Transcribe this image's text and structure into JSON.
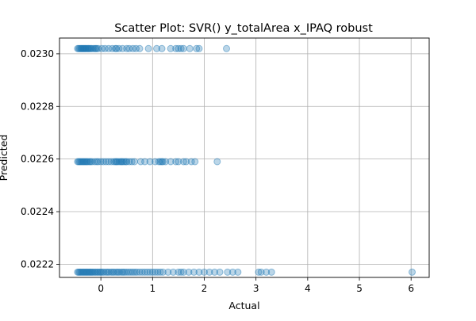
{
  "chart_data": {
    "type": "scatter",
    "title": "Scatter Plot: SVR() y_totalArea x_IPAQ robust",
    "xlabel": "Actual",
    "ylabel": "Predicted",
    "xlim": [
      -0.8,
      6.35
    ],
    "ylim": [
      0.02215,
      0.02306
    ],
    "xticks": [
      0,
      1,
      2,
      3,
      4,
      5,
      6
    ],
    "yticks": [
      0.0222,
      0.0224,
      0.0226,
      0.0228,
      0.023
    ],
    "xtick_labels": [
      "0",
      "1",
      "2",
      "3",
      "4",
      "5",
      "6"
    ],
    "ytick_labels": [
      "0.0222",
      "0.0224",
      "0.0226",
      "0.0228",
      "0.0230"
    ],
    "grid": true,
    "marker_color": "#1f77b4",
    "marker_alpha": 0.3,
    "series": [
      {
        "y": 0.02302,
        "x": [
          -0.45,
          -0.43,
          -0.41,
          -0.39,
          -0.38,
          -0.36,
          -0.35,
          -0.33,
          -0.32,
          -0.3,
          -0.29,
          -0.27,
          -0.25,
          -0.24,
          -0.22,
          -0.2,
          -0.18,
          -0.15,
          -0.12,
          -0.1,
          -0.08,
          -0.05,
          0.02,
          0.08,
          0.15,
          0.22,
          0.28,
          0.3,
          0.35,
          0.42,
          0.5,
          0.55,
          0.62,
          0.68,
          0.75,
          0.92,
          1.08,
          1.18,
          1.35,
          1.45,
          1.5,
          1.55,
          1.6,
          1.72,
          1.85,
          1.9,
          2.43
        ]
      },
      {
        "y": 0.02259,
        "x": [
          -0.45,
          -0.43,
          -0.41,
          -0.39,
          -0.37,
          -0.35,
          -0.33,
          -0.31,
          -0.29,
          -0.27,
          -0.25,
          -0.22,
          -0.2,
          -0.17,
          -0.12,
          -0.08,
          -0.05,
          0.0,
          0.05,
          0.1,
          0.15,
          0.2,
          0.25,
          0.28,
          0.3,
          0.32,
          0.35,
          0.38,
          0.4,
          0.42,
          0.45,
          0.48,
          0.5,
          0.55,
          0.6,
          0.65,
          0.77,
          0.85,
          0.95,
          1.05,
          1.12,
          1.15,
          1.18,
          1.2,
          1.25,
          1.35,
          1.45,
          1.5,
          1.6,
          1.65,
          1.75,
          1.82,
          2.25
        ]
      },
      {
        "y": 0.02217,
        "x": [
          -0.45,
          -0.43,
          -0.41,
          -0.39,
          -0.37,
          -0.35,
          -0.33,
          -0.31,
          -0.29,
          -0.27,
          -0.25,
          -0.23,
          -0.21,
          -0.19,
          -0.17,
          -0.15,
          -0.12,
          -0.1,
          -0.07,
          -0.05,
          -0.02,
          0.0,
          0.03,
          0.06,
          0.1,
          0.13,
          0.16,
          0.2,
          0.23,
          0.26,
          0.3,
          0.33,
          0.36,
          0.4,
          0.43,
          0.46,
          0.5,
          0.54,
          0.58,
          0.62,
          0.66,
          0.7,
          0.75,
          0.8,
          0.85,
          0.9,
          0.95,
          1.0,
          1.05,
          1.1,
          1.15,
          1.2,
          1.3,
          1.4,
          1.5,
          1.55,
          1.6,
          1.7,
          1.8,
          1.9,
          2.0,
          2.1,
          2.2,
          2.3,
          2.45,
          2.55,
          2.65,
          3.05,
          3.1,
          3.2,
          3.3,
          6.02
        ]
      }
    ]
  }
}
